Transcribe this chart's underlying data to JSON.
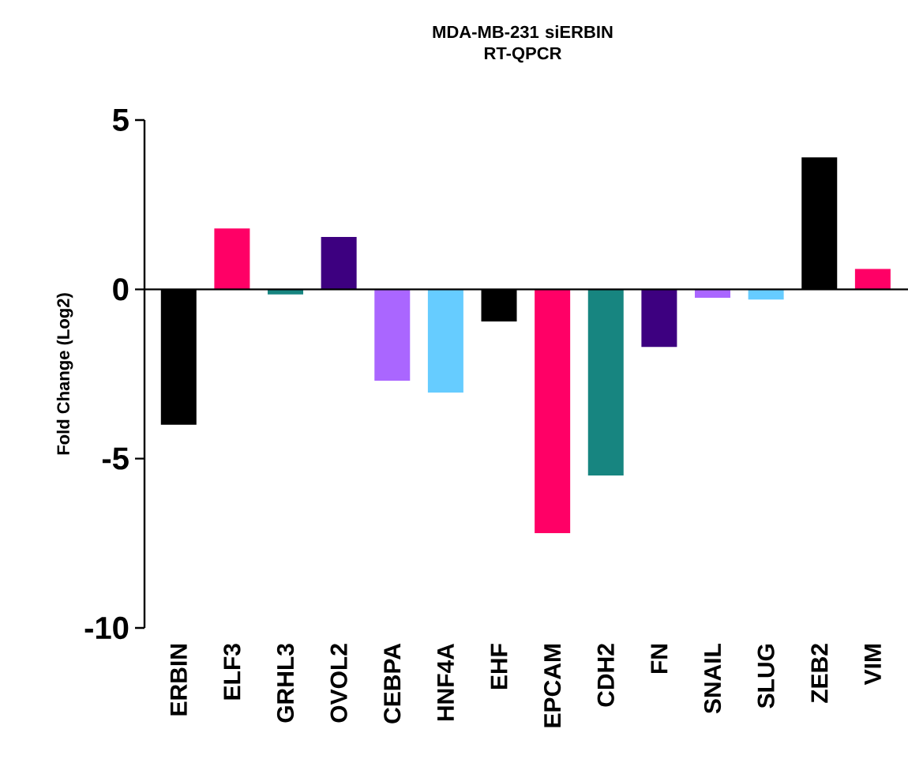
{
  "chart_data": {
    "type": "bar",
    "title": "MDA-MB-231 siERBIN\nRT-QPCR",
    "ylabel": "Fold Change (Log2)",
    "categories": [
      "ERBIN",
      "ELF3",
      "GRHL3",
      "OVOL2",
      "CEBPA",
      "HNF4A",
      "EHF",
      "EPCAM",
      "CDH2",
      "FN",
      "SNAIL",
      "SLUG",
      "ZEB2",
      "VIM"
    ],
    "values": [
      -4.0,
      1.8,
      -0.15,
      1.55,
      -2.7,
      -3.05,
      -0.95,
      -7.2,
      -5.5,
      -1.7,
      -0.25,
      -0.3,
      3.9,
      0.6
    ],
    "colors": [
      "#000000",
      "#ff0066",
      "#178580",
      "#3d0080",
      "#aa66ff",
      "#66ccff",
      "#000000",
      "#ff0066",
      "#178580",
      "#3d0080",
      "#aa66ff",
      "#66ccff",
      "#000000",
      "#ff0066"
    ],
    "ylim": [
      -10,
      5
    ],
    "yticks": [
      -10,
      -5,
      0,
      5
    ]
  }
}
